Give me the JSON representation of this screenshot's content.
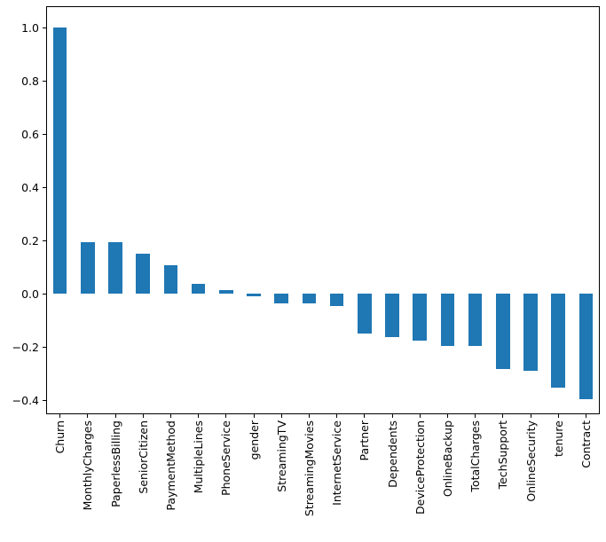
{
  "figure": {
    "background_color": "#ffffff",
    "text_color": "#000000"
  },
  "chart_data": {
    "type": "bar",
    "title": "",
    "xlabel": "",
    "ylabel": "",
    "grid": false,
    "legend": null,
    "bar_color": "#1f77b4",
    "bar_width_fraction": 0.5,
    "x_tick_rotation": 90,
    "ylim": [
      -0.453,
      1.08
    ],
    "yticks": [
      1.0,
      0.8,
      0.6,
      0.4,
      0.2,
      0.0,
      -0.2,
      -0.4
    ],
    "ytick_labels": [
      "1.0",
      "0.8",
      "0.6",
      "0.4",
      "0.2",
      "0.0",
      "−0.2",
      "−0.4"
    ],
    "categories": [
      "Churn",
      "MonthlyCharges",
      "PaperlessBilling",
      "SeniorCitizen",
      "PaymentMethod",
      "MultipleLines",
      "PhoneService",
      "gender",
      "StreamingTV",
      "StreamingMovies",
      "InternetService",
      "Partner",
      "Dependents",
      "DeviceProtection",
      "OnlineBackup",
      "TotalCharges",
      "TechSupport",
      "OnlineSecurity",
      "tenure",
      "Contract"
    ],
    "values": [
      1.0,
      0.193,
      0.192,
      0.151,
      0.107,
      0.038,
      0.012,
      -0.009,
      -0.037,
      -0.038,
      -0.047,
      -0.15,
      -0.164,
      -0.178,
      -0.196,
      -0.198,
      -0.282,
      -0.289,
      -0.352,
      -0.397
    ]
  }
}
